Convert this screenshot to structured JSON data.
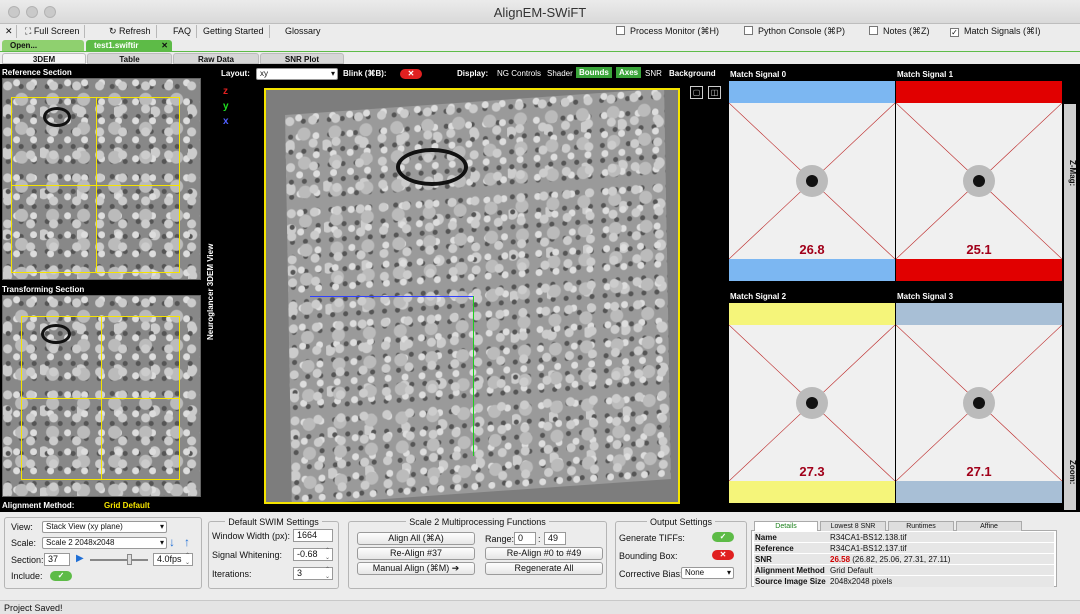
{
  "window": {
    "title": "AlignEM-SWiFT"
  },
  "toolbar": {
    "close_glyph": "✕",
    "fullscreen_label": "Full Screen",
    "refresh_label": "Refresh",
    "faq_label": "FAQ",
    "getting_started_label": "Getting Started",
    "glossary_label": "Glossary",
    "checks": [
      {
        "label": "Process Monitor (⌘H)",
        "checked": false
      },
      {
        "label": "Python Console (⌘P)",
        "checked": false
      },
      {
        "label": "Notes (⌘Z)",
        "checked": false
      },
      {
        "label": "Match Signals (⌘I)",
        "checked": true
      }
    ]
  },
  "file_tabs": [
    {
      "label": "Open..."
    },
    {
      "label": "test1.swiftir"
    }
  ],
  "view_tabs": [
    {
      "label": "3DEM"
    },
    {
      "label": "Table"
    },
    {
      "label": "Raw Data"
    },
    {
      "label": "SNR Plot"
    }
  ],
  "left_panel": {
    "reference_label": "Reference Section",
    "transforming_label": "Transforming Section",
    "method_label": "Alignment Method:",
    "method_value": "Grid Default",
    "vertical_label": "Neuroglancer 3DEM View"
  },
  "viewer": {
    "layout_label": "Layout:",
    "layout_value": "xy",
    "blink_label": "Blink (⌘B):",
    "display_label": "Display:",
    "display_items": [
      {
        "label": "NG Controls",
        "active": false
      },
      {
        "label": "Shader",
        "active": false
      },
      {
        "label": "Bounds",
        "active": true
      },
      {
        "label": "Axes",
        "active": true
      },
      {
        "label": "SNR",
        "active": false
      }
    ],
    "background_label": "Background",
    "axes": [
      "z",
      "y",
      "x"
    ]
  },
  "match_signals": {
    "tiles": [
      {
        "label": "Match Signal 0",
        "snr": "26.8",
        "color": "#7cb7f2"
      },
      {
        "label": "Match Signal 1",
        "snr": "25.1",
        "color": "#e10000"
      },
      {
        "label": "Match Signal 2",
        "snr": "27.3",
        "color": "#f5f57a"
      },
      {
        "label": "Match Signal 3",
        "snr": "27.1",
        "color": "#a8bfd6"
      }
    ],
    "zmag_label": "Z-Mag:",
    "zoom_label": "Zoom:"
  },
  "controls": {
    "view_label": "View:",
    "view_value": "Stack View (xy plane)",
    "scale_label": "Scale:",
    "scale_value": "Scale 2 2048x2048",
    "section_label": "Section:",
    "section_value": "37",
    "fps_value": "4.0fps",
    "include_label": "Include:"
  },
  "swim": {
    "title": "Default SWIM Settings",
    "window_width_label": "Window Width (px):",
    "window_width_value": "1664",
    "whitening_label": "Signal Whitening:",
    "whitening_value": "-0.68",
    "iterations_label": "Iterations:",
    "iterations_value": "3"
  },
  "multiproc": {
    "title": "Scale 2 Multiprocessing Functions",
    "align_all": "Align All (⌘A)",
    "range_label": "Range:",
    "range_start": "0",
    "range_end": "49",
    "realign": "Re-Align #37",
    "realign_range": "Re-Align #0 to #49",
    "manual_align": "Manual Align (⌘M) ➔",
    "regenerate_all": "Regenerate All"
  },
  "output": {
    "title": "Output Settings",
    "tiffs_label": "Generate TIFFs:",
    "bounding_label": "Bounding Box:",
    "bias_label": "Corrective Bias:",
    "bias_value": "None"
  },
  "details": {
    "tabs": [
      "Details",
      "Lowest 8 SNR",
      "Runtimes",
      "Affine"
    ],
    "rows": [
      {
        "key": "Name",
        "value": "R34CA1-BS12.138.tif"
      },
      {
        "key": "Reference",
        "value": "R34CA1-BS12.137.tif"
      },
      {
        "key": "SNR",
        "value": "26.58",
        "extra": "(26.82, 25.06, 27.31, 27.11)"
      },
      {
        "key": "Alignment Method",
        "value": "Grid Default"
      },
      {
        "key": "Source Image Size",
        "value": "2048x2048 pixels"
      }
    ]
  },
  "status": {
    "message": "Project Saved!"
  }
}
